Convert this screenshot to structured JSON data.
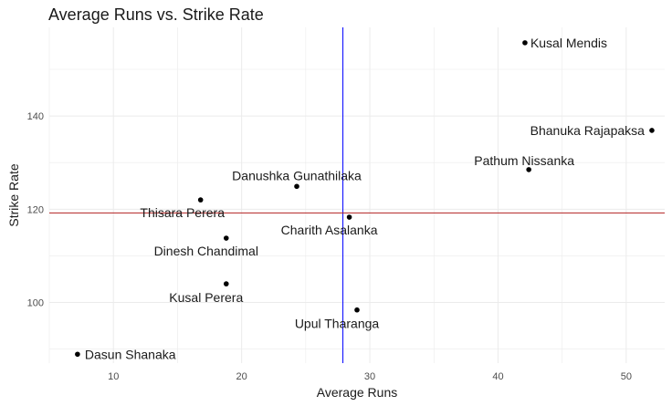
{
  "chart_data": {
    "type": "scatter",
    "title": "Average Runs vs. Strike Rate",
    "xlabel": "Average Runs",
    "ylabel": "Strike Rate",
    "xlim": [
      5,
      53
    ],
    "ylim": [
      87,
      159
    ],
    "x_ticks": [
      10,
      20,
      30,
      40,
      50
    ],
    "y_ticks": [
      100,
      120,
      140
    ],
    "grid": true,
    "points": [
      {
        "label": "Kusal Mendis",
        "x": 42.1,
        "y": 155.7
      },
      {
        "label": "Bhanuka Rajapaksa",
        "x": 52.0,
        "y": 136.9
      },
      {
        "label": "Pathum Nissanka",
        "x": 42.4,
        "y": 128.5
      },
      {
        "label": "Danushka Gunathilaka",
        "x": 24.3,
        "y": 124.9
      },
      {
        "label": "Thisara Perera",
        "x": 16.8,
        "y": 122.0
      },
      {
        "label": "Charith Asalanka",
        "x": 28.4,
        "y": 118.3
      },
      {
        "label": "Dinesh Chandimal",
        "x": 18.8,
        "y": 113.8
      },
      {
        "label": "Kusal Perera",
        "x": 18.8,
        "y": 104.0
      },
      {
        "label": "Upul Tharanga",
        "x": 29.0,
        "y": 98.4
      },
      {
        "label": "Dasun Shanaka",
        "x": 7.2,
        "y": 88.9
      }
    ],
    "reference_lines": [
      {
        "orientation": "vertical",
        "value": 27.9,
        "color": "#0000ff"
      },
      {
        "orientation": "horizontal",
        "value": 119.2,
        "color": "#b22222"
      }
    ],
    "colors": {
      "points": "#000000",
      "grid": "#ebebeb",
      "vline": "#0000ff",
      "hline": "#b22222"
    }
  }
}
